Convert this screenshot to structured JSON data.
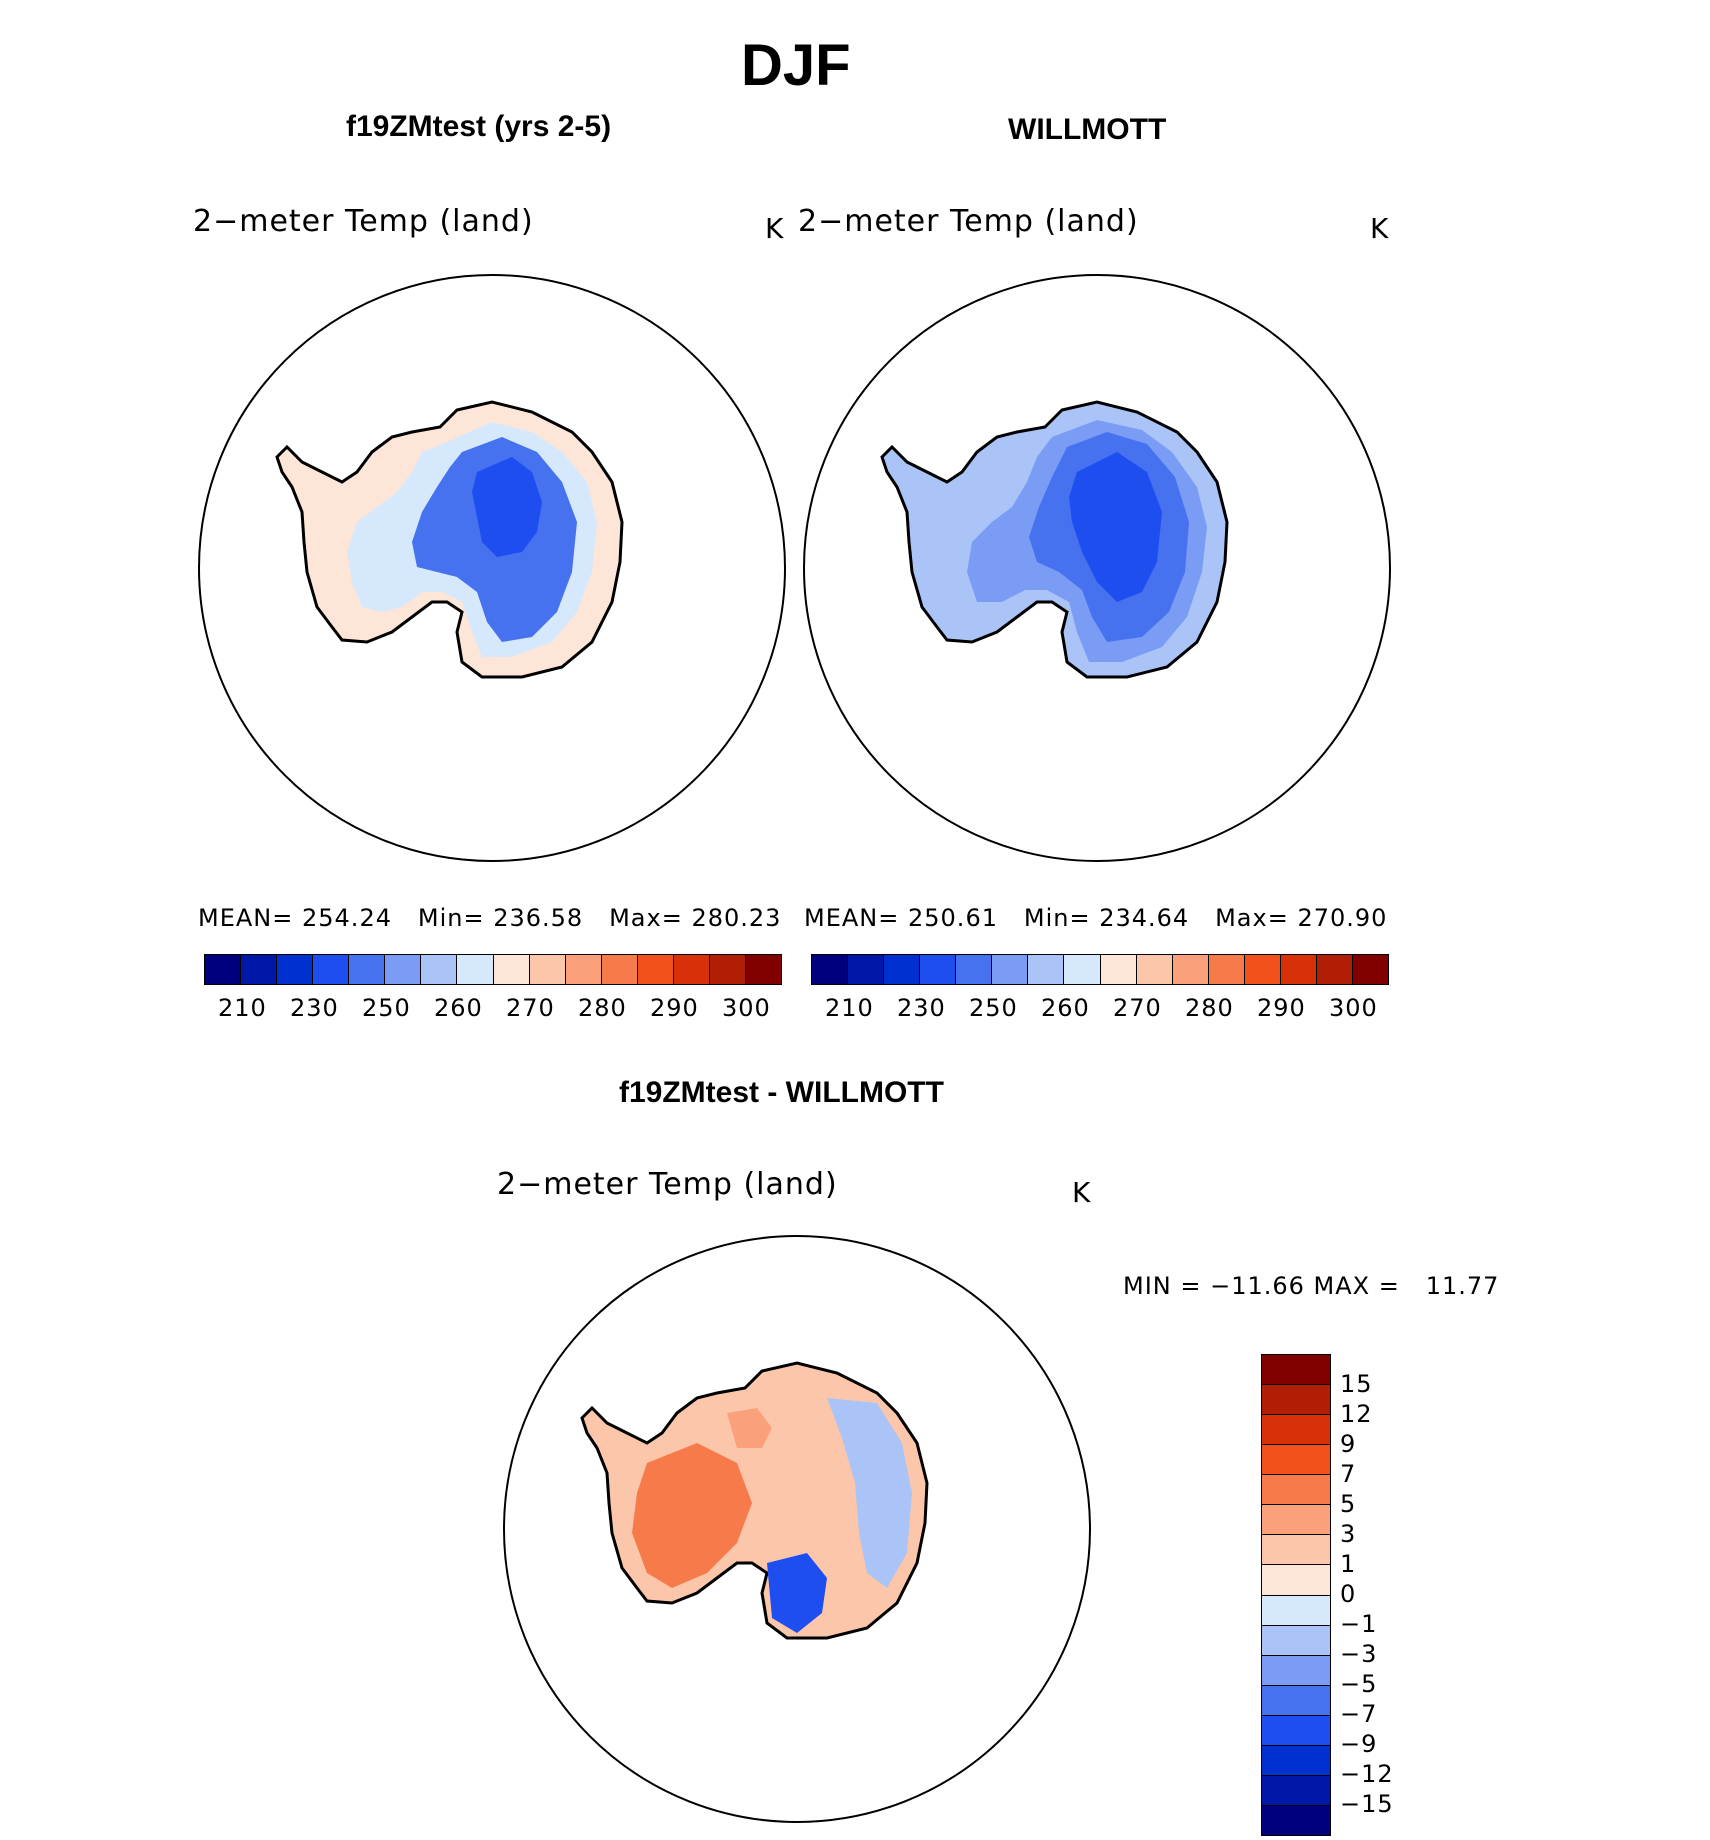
{
  "title": "DJF",
  "panels": [
    {
      "heading": "f19ZMtest (yrs 2-5)",
      "variable": "2−meter Temp (land)",
      "units": "K",
      "stats": {
        "mean_label": "MEAN=",
        "mean": "254.24",
        "min_label": "Min=",
        "min": "236.58",
        "max_label": "Max=",
        "max": "280.23"
      }
    },
    {
      "heading": "WILLMOTT",
      "variable": "2−meter Temp (land)",
      "units": "K",
      "stats": {
        "mean_label": "MEAN=",
        "mean": "250.61",
        "min_label": "Min=",
        "min": "234.64",
        "max_label": "Max=",
        "max": "270.90"
      }
    }
  ],
  "diff_panel": {
    "heading": "f19ZMtest - WILLMOTT",
    "variable": "2−meter Temp (land)",
    "units": "K",
    "minmax_label": "MIN = −11.66 MAX =   11.77"
  },
  "colorbar_top": {
    "colors": [
      "#00007f",
      "#0018a8",
      "#0030d0",
      "#1e4ef0",
      "#4672f0",
      "#7a9cf5",
      "#aac4f8",
      "#d6e8fc",
      "#fde6d8",
      "#fcc6aa",
      "#faa07a",
      "#f77a4a",
      "#f3501e",
      "#d83008",
      "#b01e05",
      "#800000"
    ],
    "tick_labels": [
      "210",
      "230",
      "250",
      "260",
      "270",
      "280",
      "290",
      "300"
    ]
  },
  "colorbar_diff": {
    "colors": [
      "#800000",
      "#b01e05",
      "#d83008",
      "#f3501e",
      "#f77a4a",
      "#faa07a",
      "#fcc6aa",
      "#fde6d8",
      "#d6e8fc",
      "#aac4f8",
      "#7a9cf5",
      "#4672f0",
      "#1e4ef0",
      "#0030d0",
      "#0018a8",
      "#00007f"
    ],
    "tick_labels": [
      "15",
      "12",
      "9",
      "7",
      "5",
      "3",
      "1",
      "0",
      "−1",
      "−3",
      "−5",
      "−7",
      "−9",
      "−12",
      "−15"
    ]
  }
}
